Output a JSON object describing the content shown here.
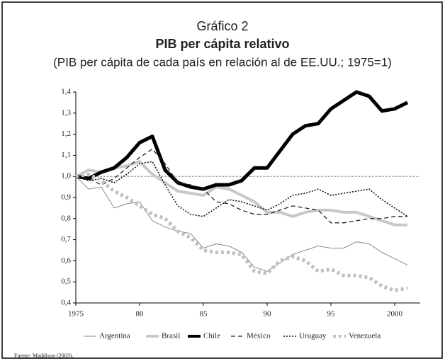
{
  "chart_data": {
    "type": "line",
    "title": "Gráfico 2",
    "subtitle": "PIB per cápita relativo",
    "description": "(PIB per cápita de cada país en relación al de EE.UU.; 1975=1)",
    "source": "Fuente: Maddison (2003).",
    "x": [
      1975,
      1976,
      1977,
      1978,
      1979,
      1980,
      1981,
      1982,
      1983,
      1984,
      1985,
      1986,
      1987,
      1988,
      1989,
      1990,
      1991,
      1992,
      1993,
      1994,
      1995,
      1996,
      1997,
      1998,
      1999,
      2000,
      2001
    ],
    "xlim": [
      1975,
      2002
    ],
    "xticks": [
      1975,
      {
        "value": 1980,
        "label": "80"
      },
      {
        "value": 1985,
        "label": "85"
      },
      {
        "value": 1990,
        "label": "90"
      },
      {
        "value": 1995,
        "label": "95"
      },
      2000
    ],
    "ylim": [
      0.4,
      1.4
    ],
    "yticks": [
      {
        "value": 0.4,
        "label": "0,4"
      },
      {
        "value": 0.5,
        "label": "0,5"
      },
      {
        "value": 0.6,
        "label": "0,6"
      },
      {
        "value": 0.7,
        "label": "0,7"
      },
      {
        "value": 0.8,
        "label": "0,8"
      },
      {
        "value": 0.9,
        "label": "0,9"
      },
      {
        "value": 1,
        "label": "1,0"
      },
      {
        "value": 1.1,
        "label": "1,1"
      },
      {
        "value": 1.2,
        "label": "1,2"
      },
      {
        "value": 1.3,
        "label": "1,3"
      },
      {
        "value": 1.4,
        "label": "1,4"
      }
    ],
    "reference_line": 1,
    "grid": false,
    "legend": "bottom",
    "series": [
      {
        "name": "Argentina",
        "color": "#8a8a8a",
        "width": 1,
        "dash": "",
        "values": [
          1.0,
          0.94,
          0.95,
          0.85,
          0.87,
          0.88,
          0.79,
          0.76,
          0.74,
          0.73,
          0.66,
          0.68,
          0.67,
          0.64,
          0.57,
          0.55,
          0.59,
          0.63,
          0.65,
          0.67,
          0.66,
          0.66,
          0.69,
          0.68,
          0.64,
          0.61,
          0.58
        ]
      },
      {
        "name": "Brasil",
        "color": "#c8c8c8",
        "width": 4,
        "dash": "",
        "values": [
          1.0,
          1.03,
          1.02,
          1.04,
          1.05,
          1.07,
          1.01,
          0.97,
          0.93,
          0.92,
          0.91,
          0.95,
          0.94,
          0.91,
          0.88,
          0.83,
          0.83,
          0.81,
          0.83,
          0.84,
          0.84,
          0.83,
          0.83,
          0.81,
          0.79,
          0.77,
          0.77
        ]
      },
      {
        "name": "Chile",
        "color": "#000000",
        "width": 5,
        "dash": "",
        "values": [
          1.0,
          0.99,
          1.02,
          1.04,
          1.09,
          1.16,
          1.19,
          1.03,
          0.97,
          0.95,
          0.94,
          0.96,
          0.96,
          0.98,
          1.04,
          1.04,
          1.12,
          1.2,
          1.24,
          1.25,
          1.32,
          1.36,
          1.4,
          1.38,
          1.31,
          1.32,
          1.35
        ]
      },
      {
        "name": "México",
        "color": "#222222",
        "width": 1.3,
        "dash": "6 4",
        "values": [
          1.0,
          0.99,
          0.96,
          0.99,
          1.04,
          1.09,
          1.13,
          1.06,
          0.97,
          0.96,
          0.94,
          0.88,
          0.87,
          0.84,
          0.82,
          0.82,
          0.84,
          0.86,
          0.85,
          0.84,
          0.78,
          0.78,
          0.79,
          0.8,
          0.8,
          0.81,
          0.81
        ]
      },
      {
        "name": "Uruguay",
        "color": "#111111",
        "width": 1.6,
        "dash": "2 2",
        "values": [
          1.0,
          0.98,
          0.99,
          0.97,
          1.01,
          1.06,
          1.07,
          0.96,
          0.86,
          0.82,
          0.81,
          0.85,
          0.89,
          0.88,
          0.86,
          0.84,
          0.87,
          0.91,
          0.92,
          0.94,
          0.91,
          0.92,
          0.93,
          0.94,
          0.89,
          0.85,
          0.81
        ]
      },
      {
        "name": "Venezuela",
        "color": "#c0c0c0",
        "width": 5,
        "dash": "4 4",
        "values": [
          1.0,
          1.01,
          0.98,
          0.93,
          0.9,
          0.86,
          0.82,
          0.8,
          0.74,
          0.71,
          0.65,
          0.64,
          0.64,
          0.63,
          0.55,
          0.54,
          0.6,
          0.62,
          0.6,
          0.55,
          0.56,
          0.53,
          0.53,
          0.52,
          0.48,
          0.46,
          0.47
        ]
      }
    ]
  }
}
